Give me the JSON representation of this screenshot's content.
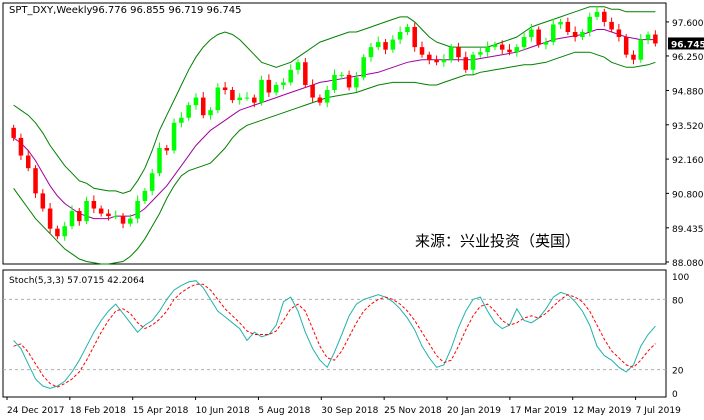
{
  "header": {
    "symbol": "SPT_DXY,Weekly",
    "ohlc": "96.776 96.855 96.719 96.745"
  },
  "stoch_header": "Stoch(5,3,3) 57.0715 42.2064",
  "watermark": "来源：兴业投资（英国）",
  "colors": {
    "up": "#00ff00",
    "down": "#ff0000",
    "bollinger": "#008000",
    "ma": "#a000a0",
    "stoch_main": "#20b2aa",
    "stoch_signal": "#ff0000",
    "current_price_bg": "#000000",
    "border": "#000000"
  },
  "chart_data": [
    {
      "type": "candlestick",
      "title": "SPT_DXY,Weekly",
      "ylim": [
        88.0,
        98.35
      ],
      "price_ticks": [
        "97.600",
        "96.250",
        "94.880",
        "93.520",
        "92.160",
        "90.800",
        "89.435",
        "88.080"
      ],
      "current_price": "96.745",
      "x_ticks": [
        "24 Dec 2017",
        "18 Feb 2018",
        "15 Apr 2018",
        "10 Jun 2018",
        "5 Aug 2018",
        "30 Sep 2018",
        "25 Nov 2018",
        "20 Jan 2019",
        "17 Mar 2019",
        "12 May 2019",
        "7 Jul 2019"
      ],
      "close": [
        93.0,
        92.3,
        91.8,
        90.8,
        90.2,
        89.4,
        89.1,
        89.5,
        90.1,
        89.7,
        90.5,
        90.2,
        90.0,
        89.9,
        89.9,
        89.6,
        89.8,
        90.5,
        90.9,
        91.6,
        92.6,
        92.5,
        93.6,
        93.8,
        94.3,
        94.6,
        93.9,
        94.1,
        95.0,
        94.9,
        94.5,
        94.6,
        94.6,
        94.4,
        95.3,
        94.8,
        95.1,
        95.2,
        95.7,
        96.0,
        95.1,
        94.6,
        94.4,
        94.9,
        95.5,
        95.5,
        95.0,
        95.4,
        96.2,
        96.6,
        96.8,
        96.5,
        96.9,
        97.2,
        97.4,
        96.6,
        96.3,
        96.1,
        96.0,
        96.1,
        96.6,
        96.2,
        95.7,
        96.3,
        96.4,
        96.6,
        96.7,
        96.5,
        96.4,
        96.6,
        97.0,
        97.3,
        96.7,
        96.8,
        97.5,
        97.6,
        97.2,
        97.0,
        97.2,
        97.8,
        98.0,
        97.6,
        97.3,
        97.0,
        96.3,
        96.1,
        96.9,
        97.1,
        96.745
      ],
      "bb_upper": [
        94.3,
        94.1,
        93.9,
        93.6,
        93.2,
        92.7,
        92.3,
        91.9,
        91.6,
        91.3,
        91.2,
        91.0,
        90.95,
        90.9,
        90.9,
        90.8,
        90.9,
        91.3,
        91.8,
        92.5,
        93.3,
        93.9,
        94.5,
        95.1,
        95.7,
        96.2,
        96.6,
        96.9,
        97.1,
        97.2,
        97.1,
        96.9,
        96.6,
        96.3,
        96.0,
        95.9,
        95.8,
        95.9,
        96.0,
        96.2,
        96.4,
        96.6,
        96.8,
        96.9,
        97.0,
        97.1,
        97.2,
        97.2,
        97.3,
        97.4,
        97.5,
        97.6,
        97.7,
        97.8,
        97.8,
        97.6,
        97.3,
        97.0,
        96.8,
        96.7,
        96.6,
        96.6,
        96.6,
        96.6,
        96.6,
        96.6,
        96.7,
        96.8,
        96.9,
        97.0,
        97.2,
        97.4,
        97.5,
        97.6,
        97.7,
        97.8,
        97.9,
        98.0,
        98.1,
        98.2,
        98.2,
        98.2,
        98.1,
        98.1,
        98.0,
        98.0,
        98.0,
        98.0,
        98.0
      ],
      "ma": [
        93.0,
        92.8,
        92.5,
        92.1,
        91.6,
        91.1,
        90.7,
        90.4,
        90.2,
        90.0,
        89.9,
        89.8,
        89.8,
        89.8,
        89.9,
        89.9,
        89.9,
        90.0,
        90.2,
        90.5,
        90.8,
        91.1,
        91.5,
        91.9,
        92.3,
        92.7,
        93.0,
        93.3,
        93.5,
        93.7,
        93.9,
        94.1,
        94.2,
        94.3,
        94.4,
        94.5,
        94.6,
        94.7,
        94.8,
        94.9,
        95.0,
        95.1,
        95.2,
        95.25,
        95.3,
        95.35,
        95.4,
        95.45,
        95.5,
        95.55,
        95.6,
        95.7,
        95.8,
        95.9,
        96.0,
        96.05,
        96.1,
        96.1,
        96.1,
        96.1,
        96.1,
        96.1,
        96.1,
        96.1,
        96.15,
        96.2,
        96.25,
        96.3,
        96.35,
        96.4,
        96.5,
        96.6,
        96.7,
        96.8,
        96.9,
        96.95,
        97.0,
        97.05,
        97.1,
        97.2,
        97.3,
        97.3,
        97.2,
        97.1,
        97.0,
        96.95,
        96.9,
        96.9,
        96.9
      ],
      "bb_lower": [
        91.0,
        90.6,
        90.2,
        89.8,
        89.5,
        89.2,
        88.9,
        88.6,
        88.4,
        88.2,
        88.1,
        88.05,
        88.0,
        88.0,
        88.05,
        88.1,
        88.3,
        88.6,
        89.0,
        89.5,
        90.0,
        90.6,
        91.1,
        91.5,
        91.7,
        91.8,
        91.9,
        92.0,
        92.3,
        92.6,
        93.0,
        93.3,
        93.5,
        93.6,
        93.7,
        93.8,
        93.9,
        94.0,
        94.1,
        94.2,
        94.3,
        94.4,
        94.5,
        94.6,
        94.65,
        94.7,
        94.75,
        94.8,
        94.9,
        95.0,
        95.1,
        95.15,
        95.2,
        95.2,
        95.2,
        95.2,
        95.15,
        95.1,
        95.1,
        95.2,
        95.3,
        95.4,
        95.5,
        95.5,
        95.6,
        95.65,
        95.7,
        95.75,
        95.8,
        95.85,
        95.9,
        95.9,
        95.95,
        96.0,
        96.1,
        96.2,
        96.3,
        96.4,
        96.4,
        96.4,
        96.3,
        96.2,
        96.0,
        95.9,
        95.8,
        95.8,
        95.85,
        95.9,
        96.0
      ]
    },
    {
      "type": "line",
      "title": "Stoch(5,3,3) 57.0715 42.2064",
      "ylim": [
        0,
        100
      ],
      "y_ticks": [
        "100",
        "80",
        "20",
        "0"
      ],
      "levels": [
        80,
        20
      ],
      "series": [
        {
          "values": [
            45,
            38,
            25,
            12,
            6,
            4,
            6,
            10,
            18,
            28,
            40,
            52,
            62,
            70,
            76,
            68,
            60,
            52,
            58,
            62,
            70,
            80,
            88,
            92,
            95,
            96,
            90,
            80,
            70,
            65,
            60,
            55,
            45,
            52,
            48,
            50,
            58,
            78,
            82,
            70,
            52,
            38,
            28,
            22,
            35,
            50,
            66,
            76,
            80,
            82,
            84,
            82,
            78,
            72,
            64,
            54,
            40,
            30,
            22,
            24,
            38,
            56,
            70,
            80,
            82,
            70,
            60,
            55,
            58,
            72,
            62,
            60,
            64,
            72,
            82,
            86,
            84,
            78,
            70,
            58,
            40,
            32,
            28,
            22,
            18,
            24,
            40,
            50,
            57.07
          ]
        },
        {
          "values": [
            40,
            42,
            35,
            25,
            15,
            8,
            5,
            8,
            12,
            18,
            28,
            40,
            52,
            62,
            70,
            72,
            68,
            60,
            55,
            58,
            63,
            70,
            80,
            86,
            90,
            93,
            93,
            88,
            80,
            72,
            66,
            60,
            53,
            50,
            50,
            50,
            53,
            62,
            72,
            76,
            70,
            55,
            40,
            30,
            28,
            36,
            48,
            60,
            70,
            76,
            80,
            82,
            80,
            76,
            70,
            62,
            52,
            42,
            32,
            26,
            28,
            40,
            54,
            66,
            74,
            76,
            70,
            62,
            58,
            60,
            64,
            66,
            64,
            68,
            74,
            80,
            84,
            82,
            78,
            70,
            58,
            46,
            36,
            30,
            24,
            22,
            28,
            36,
            42.21
          ]
        }
      ]
    }
  ]
}
